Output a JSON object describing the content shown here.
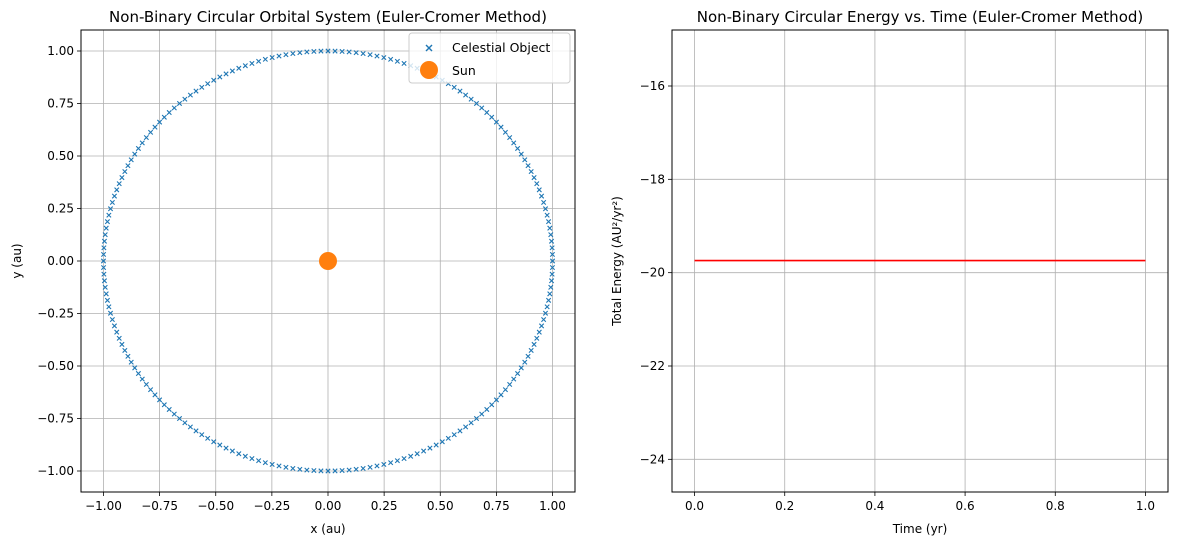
{
  "chart_data": [
    {
      "type": "scatter",
      "title": "Non-Binary Circular Orbital System (Euler-Cromer Method)",
      "xlabel": "x (au)",
      "ylabel": "y (au)",
      "xlim": [
        -1.1,
        1.1
      ],
      "ylim": [
        -1.1,
        1.1
      ],
      "xticks": [
        "−1.00",
        "−0.75",
        "−0.50",
        "−0.25",
        "0.00",
        "0.25",
        "0.50",
        "0.75",
        "1.00"
      ],
      "xtick_values": [
        -1.0,
        -0.75,
        -0.5,
        -0.25,
        0.0,
        0.25,
        0.5,
        0.75,
        1.0
      ],
      "yticks": [
        "−1.00",
        "−0.75",
        "−0.50",
        "−0.25",
        "0.00",
        "0.25",
        "0.50",
        "0.75",
        "1.00"
      ],
      "ytick_values": [
        -1.0,
        -0.75,
        -0.5,
        -0.25,
        0.0,
        0.25,
        0.5,
        0.75,
        1.0
      ],
      "grid": true,
      "legend_position": "top-right",
      "series": [
        {
          "name": "Celestial Object",
          "marker": "x",
          "color": "#1f77b4",
          "orbit": {
            "radius": 1.0,
            "center": [
              0,
              0
            ],
            "points": 200
          }
        },
        {
          "name": "Sun",
          "marker": "o",
          "color": "#ff7f0e",
          "x": [
            0.0
          ],
          "y": [
            0.0
          ]
        }
      ]
    },
    {
      "type": "line",
      "title": "Non-Binary Circular Energy vs. Time (Euler-Cromer Method)",
      "xlabel": "Time (yr)",
      "ylabel": "Total Energy (AU²/yr²)",
      "xlim": [
        -0.05,
        1.05
      ],
      "ylim": [
        -24.7,
        -14.8
      ],
      "xticks": [
        "0.0",
        "0.2",
        "0.4",
        "0.6",
        "0.8",
        "1.0"
      ],
      "xtick_values": [
        0.0,
        0.2,
        0.4,
        0.6,
        0.8,
        1.0
      ],
      "yticks": [
        "−24",
        "−22",
        "−20",
        "−18",
        "−16"
      ],
      "ytick_values": [
        -24,
        -22,
        -20,
        -18,
        -16
      ],
      "grid": true,
      "series": [
        {
          "color": "#ff0000",
          "x": [
            0.0,
            1.0
          ],
          "y": [
            -19.74,
            -19.74
          ]
        }
      ]
    }
  ]
}
